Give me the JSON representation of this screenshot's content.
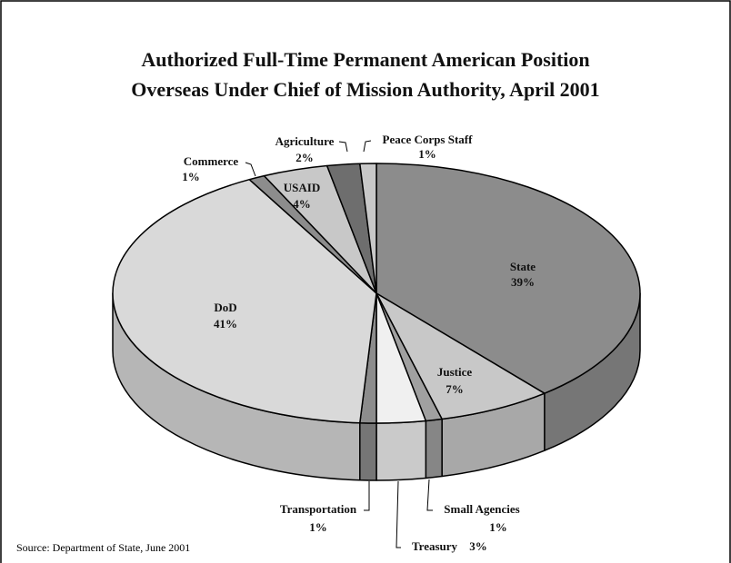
{
  "chart_data": {
    "type": "pie",
    "title": [
      "Authorized Full-Time Permanent American Position",
      "Overseas Under Chief of Mission Authority, April 2001"
    ],
    "categories": [
      "State",
      "Justice",
      "Small Agencies",
      "Treasury",
      "Transportation",
      "DoD",
      "Commerce",
      "USAID",
      "Agriculture",
      "Peace Corps Staff"
    ],
    "values": [
      39,
      7,
      1,
      3,
      1,
      41,
      1,
      4,
      2,
      1
    ],
    "value_labels": [
      "39%",
      "7%",
      "1%",
      "3%",
      "1%",
      "41%",
      "1%",
      "4%",
      "2%",
      "1%"
    ],
    "colors": [
      "#8c8c8c",
      "#c8c8c8",
      "#a0a0a0",
      "#f0f0f0",
      "#8c8c8c",
      "#d9d9d9",
      "#8c8c8c",
      "#c8c8c8",
      "#6e6e6e",
      "#c8c8c8"
    ],
    "source": "Source:  Department of State, June 2001"
  }
}
